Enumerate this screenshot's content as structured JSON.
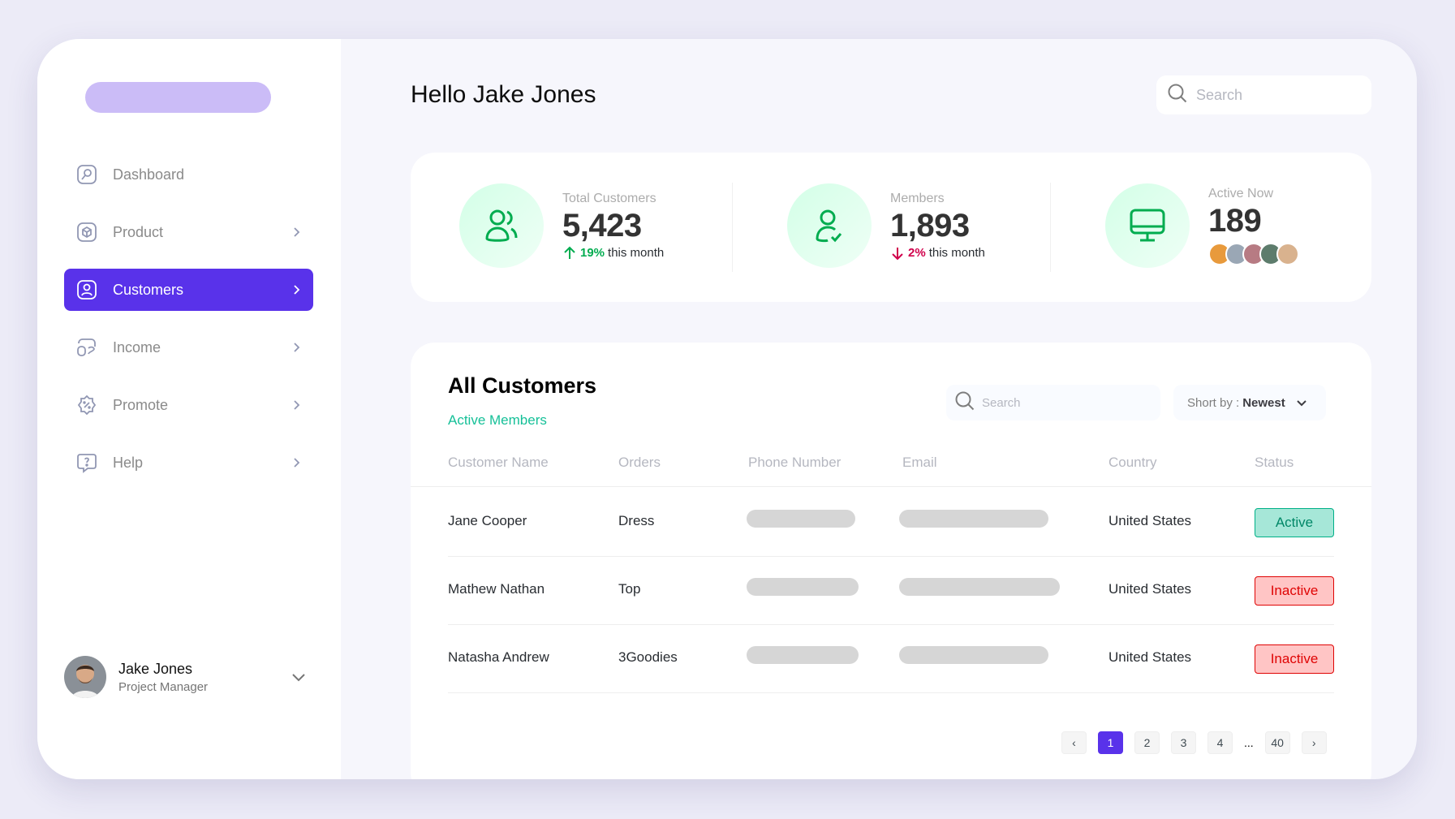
{
  "sidebar": {
    "items": [
      {
        "label": "Dashboard",
        "icon": "dashboard-icon"
      },
      {
        "label": "Product",
        "icon": "product-icon"
      },
      {
        "label": "Customers",
        "icon": "customers-icon"
      },
      {
        "label": "Income",
        "icon": "income-icon"
      },
      {
        "label": "Promote",
        "icon": "promote-icon"
      },
      {
        "label": "Help",
        "icon": "help-icon"
      }
    ],
    "active": "Customers",
    "user": {
      "name": "Jake Jones",
      "role": "Project Manager"
    }
  },
  "header": {
    "greeting": "Hello Jake Jones",
    "search_placeholder": "Search"
  },
  "stats": [
    {
      "label": "Total Customers",
      "value": "5,423",
      "trend_pct": "19%",
      "trend_text": "this month",
      "trend": "up"
    },
    {
      "label": "Members",
      "value": "1,893",
      "trend_pct": "2%",
      "trend_text": "this month",
      "trend": "down"
    },
    {
      "label": "Active Now",
      "value": "189"
    }
  ],
  "table": {
    "title": "All Customers",
    "subtitle": "Active Members",
    "search_placeholder": "Search",
    "sort_label": "Short by :",
    "sort_value": "Newest",
    "columns": [
      "Customer Name",
      "Orders",
      "Phone Number",
      "Email",
      "Country",
      "Status"
    ],
    "rows": [
      {
        "name": "Jane Cooper",
        "order": "Dress",
        "country": "United States",
        "status": "Active"
      },
      {
        "name": "Mathew Nathan",
        "order": "Top",
        "country": "United States",
        "status": "Inactive"
      },
      {
        "name": "Natasha Andrew",
        "order": "3Goodies",
        "country": "United States",
        "status": "Inactive"
      }
    ]
  },
  "pagination": {
    "prev": "‹",
    "pages": [
      "1",
      "2",
      "3",
      "4"
    ],
    "ellipsis": "...",
    "last": "40",
    "next": "›",
    "current": "1"
  },
  "colors": {
    "accent": "#5932EA",
    "green": "#16C098",
    "logo": "#CBBCF7"
  }
}
